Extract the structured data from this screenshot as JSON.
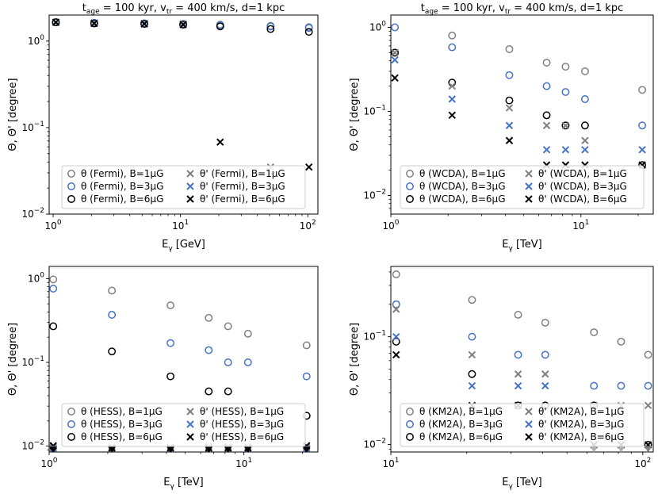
{
  "colors": {
    "gray": "#808080",
    "blue": "#4472c4",
    "black": "#000000"
  },
  "chart_data": [
    {
      "type": "scatter",
      "title": "t_age = 100 kyr, v_tr = 400 km/s, d=1 kpc",
      "title_parts": [
        "t",
        "age",
        " = 100 kyr, v",
        "tr",
        " = 400 km/s, d=1 kpc"
      ],
      "xlabel_parts": [
        "E",
        "γ",
        " [GeV]"
      ],
      "ylabel": "Θ, Θ' [degree]",
      "xlim": [
        0.93,
        120
      ],
      "ylim": [
        0.01,
        2.0
      ],
      "x_ticks": [
        {
          "v": 1,
          "base": "10",
          "exp": "0"
        },
        {
          "v": 10,
          "base": "10",
          "exp": "1"
        },
        {
          "v": 100,
          "base": "10",
          "exp": "2"
        }
      ],
      "y_ticks": [
        {
          "v": 0.01,
          "base": "10",
          "exp": "−2"
        },
        {
          "v": 0.1,
          "base": "10",
          "exp": "−1"
        },
        {
          "v": 1,
          "base": "10",
          "exp": "0"
        }
      ],
      "legend_position": "lower-center",
      "series": [
        {
          "name": "θ (Fermi), B=1μG",
          "marker": "circle",
          "color": "gray",
          "points": [
            [
              1.05,
              1.65
            ],
            [
              2.1,
              1.62
            ],
            [
              5.2,
              1.6
            ],
            [
              10.5,
              1.58
            ],
            [
              20.5,
              1.55
            ],
            [
              51,
              1.5
            ],
            [
              102,
              1.45
            ]
          ]
        },
        {
          "name": "θ (Fermi), B=3μG",
          "marker": "circle",
          "color": "blue",
          "points": [
            [
              1.05,
              1.65
            ],
            [
              2.1,
              1.62
            ],
            [
              5.2,
              1.6
            ],
            [
              10.5,
              1.56
            ],
            [
              20.5,
              1.53
            ],
            [
              51,
              1.48
            ],
            [
              102,
              1.42
            ]
          ]
        },
        {
          "name": "θ (Fermi), B=6μG",
          "marker": "circle",
          "color": "black",
          "points": [
            [
              1.05,
              1.65
            ],
            [
              2.1,
              1.6
            ],
            [
              5.2,
              1.58
            ],
            [
              10.5,
              1.55
            ],
            [
              20.5,
              1.48
            ],
            [
              51,
              1.38
            ],
            [
              102,
              1.28
            ]
          ]
        },
        {
          "name": "θ' (Fermi), B=1μG",
          "marker": "x",
          "color": "gray",
          "points": [
            [
              1.05,
              1.65
            ],
            [
              2.1,
              1.62
            ],
            [
              5.2,
              1.6
            ],
            [
              10.5,
              1.58
            ],
            [
              51,
              0.035
            ]
          ]
        },
        {
          "name": "θ' (Fermi), B=3μG",
          "marker": "x",
          "color": "blue",
          "points": [
            [
              1.05,
              1.65
            ],
            [
              2.1,
              1.62
            ],
            [
              5.2,
              1.6
            ],
            [
              10.5,
              1.56
            ]
          ]
        },
        {
          "name": "θ' (Fermi), B=6μG",
          "marker": "x",
          "color": "black",
          "points": [
            [
              1.05,
              1.65
            ],
            [
              2.1,
              1.6
            ],
            [
              5.2,
              1.58
            ],
            [
              10.5,
              1.55
            ],
            [
              20.5,
              0.068
            ],
            [
              102,
              0.035
            ]
          ]
        }
      ]
    },
    {
      "type": "scatter",
      "title": "t_age = 100 kyr, v_tr = 400 km/s, d=1 kpc",
      "title_parts": [
        "t",
        "age",
        " = 100 kyr, v",
        "tr",
        " = 400 km/s, d=1 kpc"
      ],
      "xlabel_parts": [
        "E",
        "γ",
        " [TeV]"
      ],
      "ylabel": "Θ, Θ' [degree]",
      "xlim": [
        1.0,
        24
      ],
      "ylim": [
        0.006,
        1.4
      ],
      "x_ticks": [
        {
          "v": 1,
          "base": "10",
          "exp": "0"
        },
        {
          "v": 10,
          "base": "10",
          "exp": "1"
        }
      ],
      "y_ticks": [
        {
          "v": 0.01,
          "base": "10",
          "exp": "−2"
        },
        {
          "v": 0.1,
          "base": "10",
          "exp": "−1"
        },
        {
          "v": 1,
          "base": "10",
          "exp": "0"
        }
      ],
      "legend_position": "lower-center",
      "series": [
        {
          "name": "θ (WCDA), B=1μG",
          "marker": "circle",
          "color": "gray",
          "points": [
            [
              1.05,
              0.5
            ],
            [
              2.1,
              0.8
            ],
            [
              4.2,
              0.55
            ],
            [
              6.6,
              0.38
            ],
            [
              8.3,
              0.34
            ],
            [
              10.5,
              0.3
            ],
            [
              21,
              0.18
            ]
          ]
        },
        {
          "name": "θ (WCDA), B=3μG",
          "marker": "circle",
          "color": "blue",
          "points": [
            [
              1.05,
              1.0
            ],
            [
              2.1,
              0.58
            ],
            [
              4.2,
              0.27
            ],
            [
              6.6,
              0.2
            ],
            [
              8.3,
              0.17
            ],
            [
              10.5,
              0.14
            ],
            [
              21,
              0.068
            ]
          ]
        },
        {
          "name": "θ (WCDA), B=6μG",
          "marker": "circle",
          "color": "black",
          "points": [
            [
              1.05,
              0.5
            ],
            [
              2.1,
              0.22
            ],
            [
              4.2,
              0.135
            ],
            [
              6.6,
              0.09
            ],
            [
              8.3,
              0.068
            ],
            [
              10.5,
              0.068
            ],
            [
              21,
              0.023
            ]
          ]
        },
        {
          "name": "θ' (WCDA), B=1μG",
          "marker": "x",
          "color": "gray",
          "points": [
            [
              1.05,
              0.5
            ],
            [
              2.1,
              0.2
            ],
            [
              4.2,
              0.11
            ],
            [
              6.6,
              0.068
            ],
            [
              8.3,
              0.068
            ],
            [
              10.5,
              0.045
            ],
            [
              21,
              0.023
            ]
          ]
        },
        {
          "name": "θ' (WCDA), B=3μG",
          "marker": "x",
          "color": "blue",
          "points": [
            [
              1.05,
              0.41
            ],
            [
              2.1,
              0.14
            ],
            [
              4.2,
              0.068
            ],
            [
              6.6,
              0.035
            ],
            [
              8.3,
              0.035
            ],
            [
              10.5,
              0.035
            ],
            [
              21,
              0.035
            ]
          ]
        },
        {
          "name": "θ' (WCDA), B=6μG",
          "marker": "x",
          "color": "black",
          "points": [
            [
              1.05,
              0.25
            ],
            [
              2.1,
              0.09
            ],
            [
              4.2,
              0.045
            ],
            [
              6.6,
              0.023
            ],
            [
              8.3,
              0.023
            ],
            [
              10.5,
              0.023
            ],
            [
              21,
              0.023
            ]
          ]
        }
      ]
    },
    {
      "type": "scatter",
      "title": "",
      "xlabel_parts": [
        "E",
        "γ",
        " [TeV]"
      ],
      "ylabel": "Θ, Θ' [degree]",
      "xlim": [
        1.0,
        24
      ],
      "ylim": [
        0.0085,
        1.4
      ],
      "x_ticks": [
        {
          "v": 1,
          "base": "10",
          "exp": "0"
        },
        {
          "v": 10,
          "base": "10",
          "exp": "1"
        }
      ],
      "y_ticks": [
        {
          "v": 0.01,
          "base": "10",
          "exp": "−2"
        },
        {
          "v": 0.1,
          "base": "10",
          "exp": "−1"
        },
        {
          "v": 1,
          "base": "10",
          "exp": "0"
        }
      ],
      "legend_position": "lower-center",
      "series": [
        {
          "name": "θ (HESS), B=1μG",
          "marker": "circle",
          "color": "gray",
          "points": [
            [
              1.05,
              0.98
            ],
            [
              2.1,
              0.72
            ],
            [
              4.2,
              0.48
            ],
            [
              6.6,
              0.34
            ],
            [
              8.3,
              0.27
            ],
            [
              10.5,
              0.22
            ],
            [
              21,
              0.16
            ]
          ]
        },
        {
          "name": "θ (HESS), B=3μG",
          "marker": "circle",
          "color": "blue",
          "points": [
            [
              1.05,
              0.76
            ],
            [
              2.1,
              0.37
            ],
            [
              4.2,
              0.17
            ],
            [
              6.6,
              0.14
            ],
            [
              8.3,
              0.1
            ],
            [
              10.5,
              0.1
            ],
            [
              21,
              0.068
            ]
          ]
        },
        {
          "name": "θ (HESS), B=6μG",
          "marker": "circle",
          "color": "black",
          "points": [
            [
              1.05,
              0.27
            ],
            [
              2.1,
              0.135
            ],
            [
              4.2,
              0.068
            ],
            [
              6.6,
              0.045
            ],
            [
              8.3,
              0.045
            ],
            [
              21,
              0.023
            ]
          ]
        },
        {
          "name": "θ' (HESS), B=1μG",
          "marker": "x",
          "color": "gray",
          "points": [
            [
              1.05,
              0.0098
            ],
            [
              2.1,
              0.0098
            ],
            [
              4.2,
              0.0098
            ],
            [
              6.6,
              0.0098
            ],
            [
              8.3,
              0.0098
            ],
            [
              10.5,
              0.0098
            ],
            [
              21,
              0.0098
            ]
          ]
        },
        {
          "name": "θ' (HESS), B=3μG",
          "marker": "x",
          "color": "blue",
          "points": [
            [
              1.05,
              0.0094
            ],
            [
              2.1,
              0.0094
            ],
            [
              4.2,
              0.0094
            ],
            [
              6.6,
              0.0094
            ],
            [
              8.3,
              0.0094
            ],
            [
              10.5,
              0.0094
            ],
            [
              21,
              0.0094
            ]
          ]
        },
        {
          "name": "θ' (HESS), B=6μG",
          "marker": "x",
          "color": "black",
          "points": [
            [
              1.05,
              0.0101
            ],
            [
              2.1,
              0.0095
            ],
            [
              4.2,
              0.0095
            ],
            [
              6.6,
              0.0095
            ],
            [
              8.3,
              0.0095
            ],
            [
              10.5,
              0.0095
            ],
            [
              21,
              0.0101
            ]
          ]
        }
      ],
      "upper_limits": [
        {
          "color": "gray",
          "points": [
            [
              1.05,
              0.0093
            ],
            [
              2.1,
              0.0093
            ],
            [
              4.2,
              0.0093
            ],
            [
              6.6,
              0.0093
            ],
            [
              8.3,
              0.0093
            ],
            [
              10.5,
              0.0093
            ],
            [
              21,
              0.0093
            ]
          ]
        },
        {
          "color": "black",
          "points": [
            [
              1.05,
              0.0091
            ],
            [
              2.1,
              0.0091
            ],
            [
              4.2,
              0.0091
            ],
            [
              6.6,
              0.0091
            ],
            [
              8.3,
              0.0091
            ],
            [
              10.5,
              0.0091
            ],
            [
              21,
              0.0091
            ]
          ]
        }
      ]
    },
    {
      "type": "scatter",
      "title": "",
      "xlabel_parts": [
        "E",
        "γ",
        " [TeV]"
      ],
      "ylabel": "Θ, Θ' [degree]",
      "xlim": [
        10,
        110
      ],
      "ylim": [
        0.0085,
        0.45
      ],
      "x_ticks": [
        {
          "v": 10,
          "base": "10",
          "exp": "1"
        },
        {
          "v": 100,
          "base": "10",
          "exp": "2"
        }
      ],
      "y_ticks": [
        {
          "v": 0.01,
          "base": "10",
          "exp": "−2"
        },
        {
          "v": 0.1,
          "base": "10",
          "exp": "−1"
        }
      ],
      "legend_position": "lower-center",
      "series": [
        {
          "name": "θ (KM2A), B=1μG",
          "marker": "circle",
          "color": "gray",
          "points": [
            [
              10.5,
              0.38
            ],
            [
              21,
              0.22
            ],
            [
              32,
              0.16
            ],
            [
              41,
              0.135
            ],
            [
              64,
              0.11
            ],
            [
              82,
              0.09
            ],
            [
              105,
              0.068
            ]
          ]
        },
        {
          "name": "θ (KM2A), B=3μG",
          "marker": "circle",
          "color": "blue",
          "points": [
            [
              10.5,
              0.2
            ],
            [
              21,
              0.1
            ],
            [
              32,
              0.068
            ],
            [
              41,
              0.068
            ],
            [
              64,
              0.035
            ],
            [
              82,
              0.035
            ],
            [
              105,
              0.035
            ]
          ]
        },
        {
          "name": "θ (KM2A), B=6μG",
          "marker": "circle",
          "color": "black",
          "points": [
            [
              10.5,
              0.09
            ],
            [
              21,
              0.045
            ],
            [
              32,
              0.023
            ],
            [
              41,
              0.023
            ],
            [
              64,
              0.023
            ],
            [
              105,
              0.0099
            ]
          ]
        },
        {
          "name": "θ' (KM2A), B=1μG",
          "marker": "x",
          "color": "gray",
          "points": [
            [
              10.5,
              0.18
            ],
            [
              21,
              0.068
            ],
            [
              32,
              0.045
            ],
            [
              41,
              0.045
            ],
            [
              64,
              0.023
            ],
            [
              82,
              0.023
            ],
            [
              105,
              0.023
            ]
          ]
        },
        {
          "name": "θ' (KM2A), B=3μG",
          "marker": "x",
          "color": "blue",
          "points": [
            [
              10.5,
              0.1
            ],
            [
              21,
              0.035
            ],
            [
              32,
              0.035
            ],
            [
              41,
              0.035
            ]
          ]
        },
        {
          "name": "θ' (KM2A), B=6μG",
          "marker": "x",
          "color": "black",
          "points": [
            [
              10.5,
              0.068
            ],
            [
              21,
              0.023
            ],
            [
              32,
              0.023
            ],
            [
              64,
              0.0099
            ],
            [
              82,
              0.0099
            ],
            [
              105,
              0.0099
            ]
          ]
        }
      ],
      "upper_limits": [
        {
          "color": "lightgray",
          "points": [
            [
              64,
              0.0091
            ],
            [
              82,
              0.0091
            ]
          ]
        },
        {
          "color": "gray",
          "points": [
            [
              105,
              0.0091
            ]
          ]
        }
      ]
    }
  ]
}
